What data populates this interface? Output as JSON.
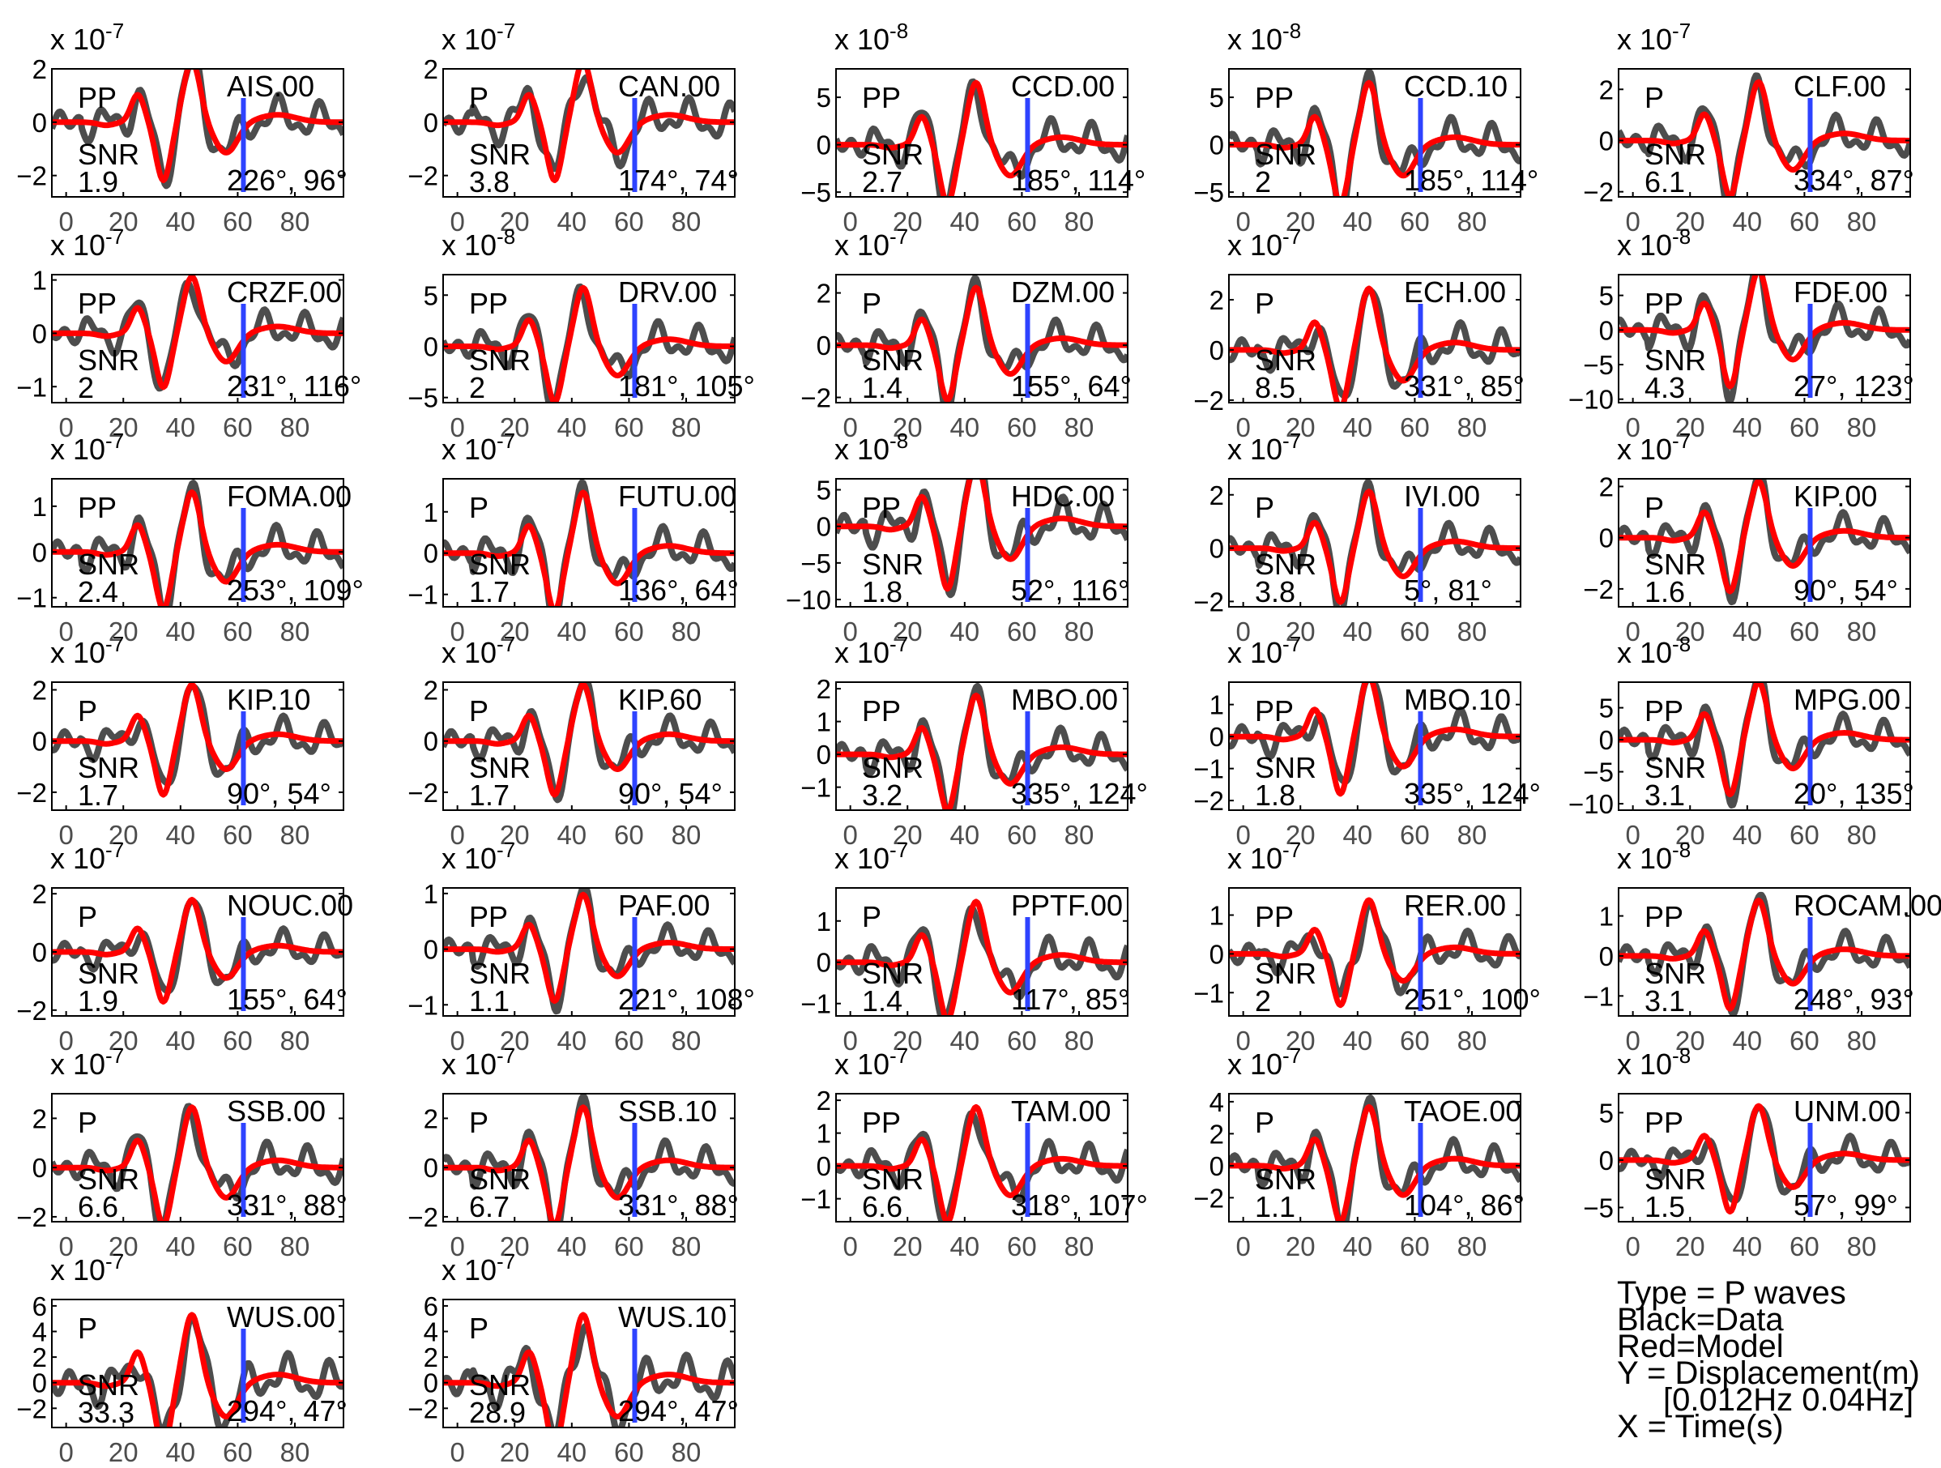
{
  "legend": {
    "type": "Type = P waves",
    "black": "Black=Data",
    "red": "Red=Model",
    "y": "Y = Displacement(m)",
    "band": "[0.012Hz 0.04Hz]",
    "x": "X = Time(s)"
  },
  "colors": {
    "data": "#4d4d4d",
    "model": "#ff0000",
    "marker": "#2e43ff",
    "axes": "#000000",
    "ticks": "#4d4d4d"
  },
  "chart_data": {
    "type": "line",
    "x_ticks": [
      0,
      20,
      40,
      60,
      80
    ],
    "xlim": [
      -5,
      97
    ],
    "marker_time": 62,
    "panels": [
      {
        "station": "AIS.00",
        "phase": "PP",
        "snr": "1.9",
        "azimuth": "226",
        "distance": "96",
        "exponent": "-7",
        "yticks": [
          -2,
          0,
          2
        ],
        "ylim": [
          -2.8,
          2.0
        ]
      },
      {
        "station": "CAN.00",
        "phase": "P",
        "snr": "3.8",
        "azimuth": "174",
        "distance": "74",
        "exponent": "-7",
        "yticks": [
          -2,
          0,
          2
        ],
        "ylim": [
          -2.8,
          2.0
        ]
      },
      {
        "station": "CCD.00",
        "phase": "PP",
        "snr": "2.7",
        "azimuth": "185",
        "distance": "114",
        "exponent": "-8",
        "yticks": [
          -5,
          0,
          5
        ],
        "ylim": [
          -5.5,
          8.0
        ]
      },
      {
        "station": "CCD.10",
        "phase": "PP",
        "snr": "2",
        "azimuth": "185",
        "distance": "114",
        "exponent": "-8",
        "yticks": [
          -5,
          0,
          5
        ],
        "ylim": [
          -5.5,
          8.0
        ]
      },
      {
        "station": "CLF.00",
        "phase": "P",
        "snr": "6.1",
        "azimuth": "334",
        "distance": "87",
        "exponent": "-7",
        "yticks": [
          -2,
          0,
          2
        ],
        "ylim": [
          -2.2,
          2.8
        ]
      },
      {
        "station": "CRZF.00",
        "phase": "PP",
        "snr": "2",
        "azimuth": "231",
        "distance": "116",
        "exponent": "-7",
        "yticks": [
          -1,
          0,
          1
        ],
        "ylim": [
          -1.3,
          1.1
        ]
      },
      {
        "station": "DRV.00",
        "phase": "PP",
        "snr": "2",
        "azimuth": "181",
        "distance": "105",
        "exponent": "-8",
        "yticks": [
          -5,
          0,
          5
        ],
        "ylim": [
          -5.5,
          7.0
        ]
      },
      {
        "station": "DZM.00",
        "phase": "P",
        "snr": "1.4",
        "azimuth": "155",
        "distance": "64",
        "exponent": "-7",
        "yticks": [
          -2,
          0,
          2
        ],
        "ylim": [
          -2.2,
          2.7
        ]
      },
      {
        "station": "ECH.00",
        "phase": "P",
        "snr": "8.5",
        "azimuth": "331",
        "distance": "85",
        "exponent": "-7",
        "yticks": [
          -2,
          0,
          2
        ],
        "ylim": [
          -2.1,
          3.0
        ]
      },
      {
        "station": "FDF.00",
        "phase": "PP",
        "snr": "4.3",
        "azimuth": "27",
        "distance": "123",
        "exponent": "-8",
        "yticks": [
          -10,
          -5,
          0,
          5
        ],
        "ylim": [
          -10.5,
          8.0
        ]
      },
      {
        "station": "FOMA.00",
        "phase": "PP",
        "snr": "2.4",
        "azimuth": "253",
        "distance": "109",
        "exponent": "-7",
        "yticks": [
          -1,
          0,
          1
        ],
        "ylim": [
          -1.2,
          1.6
        ]
      },
      {
        "station": "FUTU.00",
        "phase": "P",
        "snr": "1.7",
        "azimuth": "136",
        "distance": "64",
        "exponent": "-7",
        "yticks": [
          -1,
          0,
          1
        ],
        "ylim": [
          -1.3,
          1.8
        ]
      },
      {
        "station": "HDC.00",
        "phase": "PP",
        "snr": "1.8",
        "azimuth": "52",
        "distance": "116",
        "exponent": "-8",
        "yticks": [
          -10,
          -5,
          0,
          5
        ],
        "ylim": [
          -11.0,
          6.5
        ]
      },
      {
        "station": "IVI.00",
        "phase": "P",
        "snr": "3.8",
        "azimuth": "5",
        "distance": "81",
        "exponent": "-7",
        "yticks": [
          -2,
          0,
          2
        ],
        "ylim": [
          -2.2,
          2.6
        ]
      },
      {
        "station": "KIP.00",
        "phase": "P",
        "snr": "1.6",
        "azimuth": "90",
        "distance": "54",
        "exponent": "-7",
        "yticks": [
          -2,
          0,
          2
        ],
        "ylim": [
          -2.7,
          2.3
        ]
      },
      {
        "station": "KIP.10",
        "phase": "P",
        "snr": "1.7",
        "azimuth": "90",
        "distance": "54",
        "exponent": "-7",
        "yticks": [
          -2,
          0,
          2
        ],
        "ylim": [
          -2.7,
          2.3
        ]
      },
      {
        "station": "KIP.60",
        "phase": "P",
        "snr": "1.7",
        "azimuth": "90",
        "distance": "54",
        "exponent": "-7",
        "yticks": [
          -2,
          0,
          2
        ],
        "ylim": [
          -2.7,
          2.3
        ]
      },
      {
        "station": "MBO.00",
        "phase": "PP",
        "snr": "3.2",
        "azimuth": "335",
        "distance": "124",
        "exponent": "-7",
        "yticks": [
          -1,
          0,
          1,
          2
        ],
        "ylim": [
          -1.7,
          2.2
        ]
      },
      {
        "station": "MBO.10",
        "phase": "PP",
        "snr": "1.8",
        "azimuth": "335",
        "distance": "124",
        "exponent": "-7",
        "yticks": [
          -2,
          -1,
          0,
          1
        ],
        "ylim": [
          -2.3,
          1.7
        ]
      },
      {
        "station": "MPG.00",
        "phase": "PP",
        "snr": "3.1",
        "azimuth": "20",
        "distance": "135",
        "exponent": "-8",
        "yticks": [
          -10,
          -5,
          0,
          5
        ],
        "ylim": [
          -11.0,
          9.0
        ]
      },
      {
        "station": "NOUC.00",
        "phase": "P",
        "snr": "1.9",
        "azimuth": "155",
        "distance": "64",
        "exponent": "-7",
        "yticks": [
          -2,
          0,
          2
        ],
        "ylim": [
          -2.2,
          2.2
        ]
      },
      {
        "station": "PAF.00",
        "phase": "PP",
        "snr": "1.1",
        "azimuth": "221",
        "distance": "108",
        "exponent": "-7",
        "yticks": [
          -1,
          0,
          1
        ],
        "ylim": [
          -1.2,
          1.1
        ]
      },
      {
        "station": "PPTF.00",
        "phase": "P",
        "snr": "1.4",
        "azimuth": "117",
        "distance": "85",
        "exponent": "-7",
        "yticks": [
          -1,
          0,
          1
        ],
        "ylim": [
          -1.3,
          1.8
        ]
      },
      {
        "station": "RER.00",
        "phase": "PP",
        "snr": "2",
        "azimuth": "251",
        "distance": "100",
        "exponent": "-7",
        "yticks": [
          -1,
          0,
          1
        ],
        "ylim": [
          -1.6,
          1.7
        ]
      },
      {
        "station": "ROCAM.00",
        "phase": "PP",
        "snr": "3.1",
        "azimuth": "248",
        "distance": "93",
        "exponent": "-8",
        "yticks": [
          -1,
          0,
          1
        ],
        "ylim": [
          -1.5,
          1.7
        ]
      },
      {
        "station": "SSB.00",
        "phase": "P",
        "snr": "6.6",
        "azimuth": "331",
        "distance": "88",
        "exponent": "-7",
        "yticks": [
          -2,
          0,
          2
        ],
        "ylim": [
          -2.2,
          3.0
        ]
      },
      {
        "station": "SSB.10",
        "phase": "P",
        "snr": "6.7",
        "azimuth": "331",
        "distance": "88",
        "exponent": "-7",
        "yticks": [
          -2,
          0,
          2
        ],
        "ylim": [
          -2.2,
          3.0
        ]
      },
      {
        "station": "TAM.00",
        "phase": "PP",
        "snr": "6.6",
        "azimuth": "318",
        "distance": "107",
        "exponent": "-7",
        "yticks": [
          -1,
          0,
          1,
          2
        ],
        "ylim": [
          -1.7,
          2.2
        ]
      },
      {
        "station": "TAOE.00",
        "phase": "P",
        "snr": "1.1",
        "azimuth": "104",
        "distance": "86",
        "exponent": "-7",
        "yticks": [
          -2,
          0,
          2,
          4
        ],
        "ylim": [
          -3.5,
          4.5
        ]
      },
      {
        "station": "UNM.00",
        "phase": "PP",
        "snr": "1.5",
        "azimuth": "57",
        "distance": "99",
        "exponent": "-8",
        "yticks": [
          -5,
          0,
          5
        ],
        "ylim": [
          -6.5,
          7.0
        ]
      },
      {
        "station": "WUS.00",
        "phase": "P",
        "snr": "33.3",
        "azimuth": "294",
        "distance": "47",
        "exponent": "-7",
        "yticks": [
          -2,
          0,
          2,
          4,
          6
        ],
        "ylim": [
          -3.5,
          6.5
        ]
      },
      {
        "station": "WUS.10",
        "phase": "P",
        "snr": "28.9",
        "azimuth": "294",
        "distance": "47",
        "exponent": "-7",
        "yticks": [
          -2,
          0,
          2,
          4,
          6
        ],
        "ylim": [
          -3.5,
          6.5
        ]
      }
    ]
  }
}
